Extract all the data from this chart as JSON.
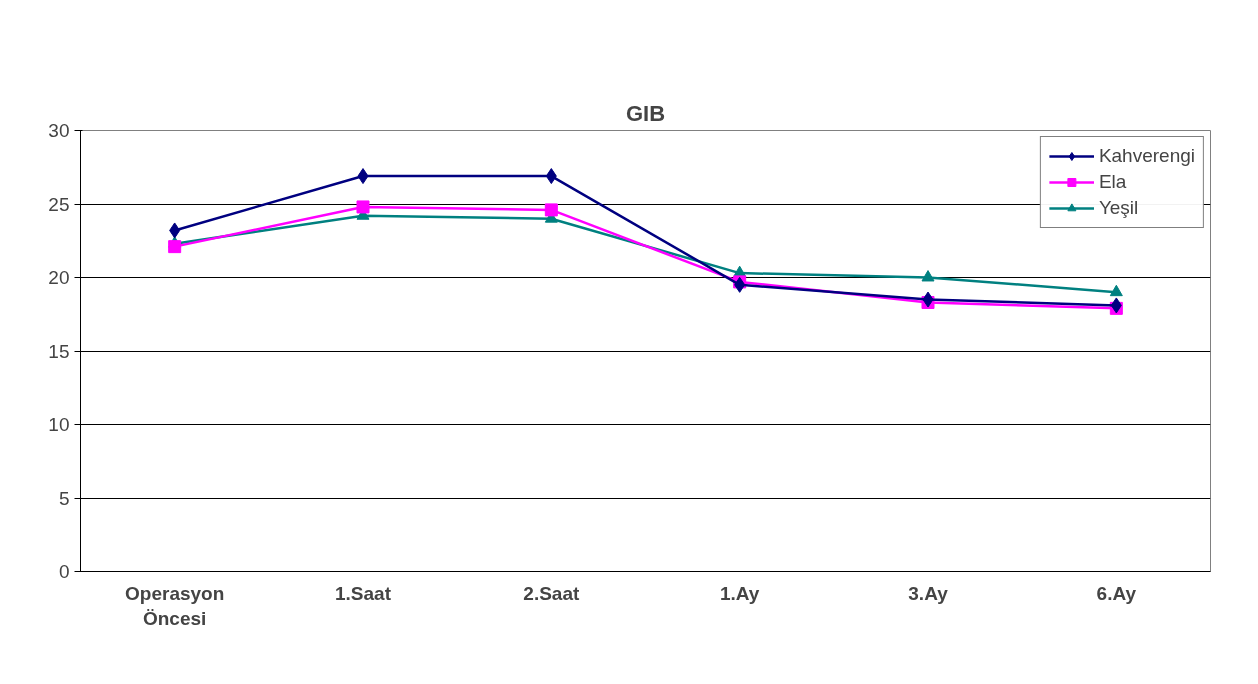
{
  "chart_data": {
    "type": "line",
    "title": "GIB",
    "categories": [
      "Operasyon Öncesi",
      "1.Saat",
      "2.Saat",
      "1.Ay",
      "3.Ay",
      "6.Ay"
    ],
    "series": [
      {
        "name": "Kahverengi",
        "color": "#000080",
        "marker": "diamond",
        "values": [
          23.2,
          26.9,
          26.9,
          19.5,
          18.5,
          18.1
        ]
      },
      {
        "name": "Ela",
        "color": "#ff00ff",
        "marker": "square",
        "values": [
          22.1,
          24.8,
          24.6,
          19.7,
          18.3,
          17.9
        ]
      },
      {
        "name": "Yeşil",
        "color": "#008080",
        "marker": "triangle",
        "values": [
          22.3,
          24.2,
          24.0,
          20.3,
          20.0,
          19.0
        ]
      }
    ],
    "ylim": [
      0,
      30
    ],
    "yticks": [
      0,
      5,
      10,
      15,
      20,
      25,
      30
    ],
    "grid": "y",
    "legend": "top right"
  }
}
